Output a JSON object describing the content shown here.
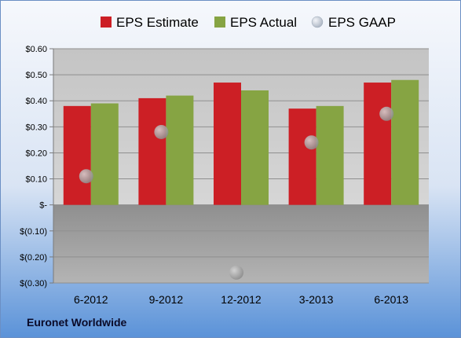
{
  "colors": {
    "estimate": "#cc1f25",
    "actual": "#86a443",
    "gaap": "#a9a9a9",
    "plot_bg": "#c8c8c8",
    "negative_bg": "#9a9a9a"
  },
  "footer": {
    "company": "Euronet Worldwide"
  },
  "chart_data": {
    "type": "bar",
    "categories": [
      "6-2012",
      "9-2012",
      "12-2012",
      "3-2013",
      "6-2013"
    ],
    "series": [
      {
        "name": "EPS Estimate",
        "kind": "bar",
        "values": [
          0.38,
          0.41,
          0.47,
          0.37,
          0.47
        ]
      },
      {
        "name": "EPS Actual",
        "kind": "bar",
        "values": [
          0.39,
          0.42,
          0.44,
          0.38,
          0.48
        ]
      },
      {
        "name": "EPS GAAP",
        "kind": "scatter",
        "values": [
          0.11,
          0.28,
          -0.26,
          0.24,
          0.35
        ]
      }
    ],
    "ylim": [
      -0.3,
      0.6
    ],
    "yticks": [
      0.6,
      0.5,
      0.4,
      0.3,
      0.2,
      0.1,
      0,
      -0.1,
      -0.2,
      -0.3
    ],
    "ytick_labels": [
      "$0.60",
      "$0.50",
      "$0.40",
      "$0.30",
      "$0.20",
      "$0.10",
      "$-",
      "$(0.10)",
      "$(0.20)",
      "$(0.30)"
    ],
    "legend_position": "top",
    "grid": true
  }
}
